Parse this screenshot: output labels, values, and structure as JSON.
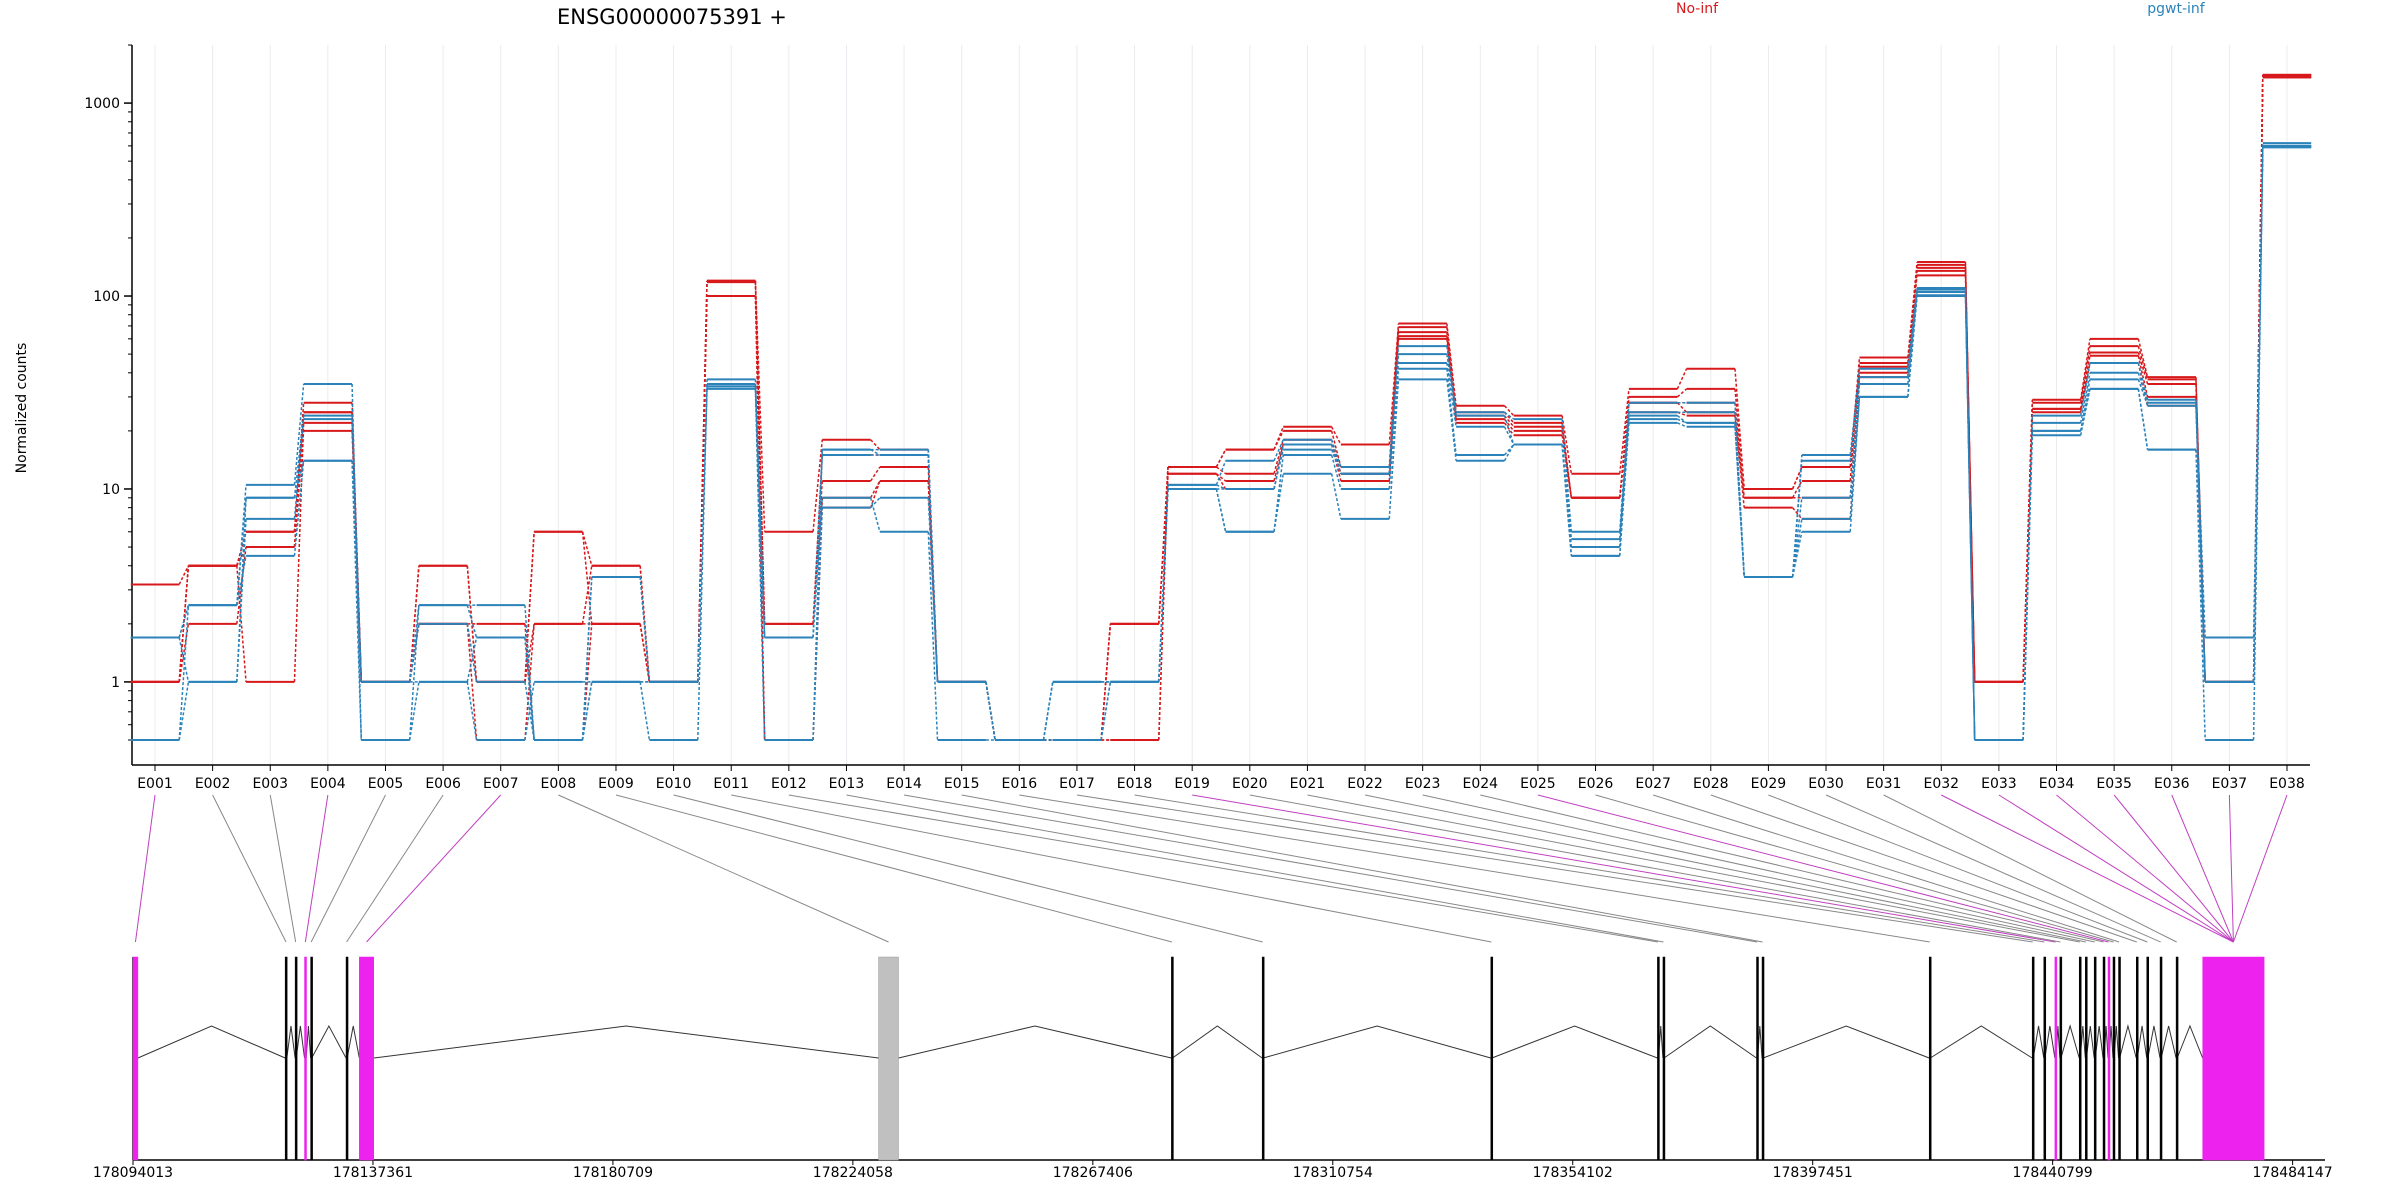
{
  "chart_data": {
    "type": "line",
    "title": "ENSG00000075391 +",
    "ylabel": "Normalized counts",
    "yscale": "log",
    "ylim": [
      0.5,
      2000
    ],
    "yticks": [
      1,
      10,
      100,
      1000
    ],
    "ytick_labels": [
      "1",
      "10",
      "100",
      "1000"
    ],
    "categories": [
      "E001",
      "E002",
      "E003",
      "E004",
      "E005",
      "E006",
      "E007",
      "E008",
      "E009",
      "E010",
      "E011",
      "E012",
      "E013",
      "E014",
      "E015",
      "E016",
      "E017",
      "E018",
      "E019",
      "E020",
      "E021",
      "E022",
      "E023",
      "E024",
      "E025",
      "E026",
      "E027",
      "E028",
      "E029",
      "E030",
      "E031",
      "E032",
      "E033",
      "E034",
      "E035",
      "E036",
      "E037",
      "E038"
    ],
    "legend": [
      {
        "label": "No-inf",
        "color": "#d7191c"
      },
      {
        "label": "pgwt-inf",
        "color": "#2b83ba"
      }
    ],
    "series": [
      {
        "group": "No-inf",
        "color": "#d7191c",
        "values": [
          3.2,
          4,
          6,
          28,
          1,
          4,
          1,
          6,
          4,
          1,
          120,
          6,
          18,
          16,
          1,
          0.5,
          0.5,
          2,
          13,
          16,
          21,
          17,
          72,
          27,
          24,
          12,
          33,
          42,
          10,
          13,
          48,
          150,
          1,
          29,
          60,
          38,
          1,
          1400
        ]
      },
      {
        "group": "No-inf",
        "color": "#d7191c",
        "values": [
          1,
          2,
          5,
          25,
          1,
          2,
          1,
          2,
          2,
          1,
          118,
          2,
          15,
          15,
          1,
          0.5,
          0.5,
          2,
          13,
          16,
          20,
          13,
          69,
          25,
          22,
          9,
          30,
          33,
          10,
          13,
          45,
          140,
          1,
          28,
          55,
          37,
          1,
          1380
        ]
      },
      {
        "group": "No-inf",
        "color": "#d7191c",
        "values": [
          1,
          4,
          1,
          22,
          1,
          2,
          0.5,
          2,
          4,
          1,
          100,
          2,
          11,
          13,
          1,
          0.5,
          0.5,
          0.5,
          13,
          12,
          18,
          12,
          65,
          24,
          21,
          9,
          28,
          28,
          9,
          11,
          43,
          128,
          1,
          26,
          51,
          35,
          1,
          1360
        ]
      },
      {
        "group": "No-inf",
        "color": "#d7191c",
        "values": [
          1,
          4,
          6,
          25,
          1,
          2,
          2,
          0.5,
          2,
          1,
          120,
          0.5,
          9,
          11,
          1,
          0.5,
          0.5,
          0.5,
          12,
          11,
          17,
          12,
          62,
          23,
          20,
          9,
          28,
          25,
          9,
          9,
          40,
          145,
          1,
          26,
          49,
          30,
          1,
          1360
        ]
      },
      {
        "group": "No-inf",
        "color": "#d7191c",
        "values": [
          1,
          4,
          5,
          20,
          1,
          4,
          1,
          6,
          2,
          1,
          100,
          0.5,
          8,
          11,
          1,
          0.5,
          0.5,
          2,
          12,
          10,
          17,
          11,
          60,
          22,
          19,
          9,
          25,
          24,
          8,
          7,
          38,
          135,
          1,
          25,
          45,
          27,
          1,
          1400
        ]
      },
      {
        "group": "pgwt-inf",
        "color": "#2b83ba",
        "values": [
          1.7,
          2.5,
          10.5,
          35,
          0.5,
          2.5,
          2.5,
          0.5,
          3.5,
          1,
          37,
          0.5,
          16,
          16,
          1,
          0.5,
          1,
          1,
          10.5,
          14,
          18,
          13,
          55,
          25,
          23,
          6,
          28,
          28,
          3.5,
          15,
          42,
          110,
          0.5,
          24,
          45,
          29,
          1.7,
          620
        ]
      },
      {
        "group": "pgwt-inf",
        "color": "#2b83ba",
        "values": [
          1.7,
          2.5,
          9,
          24,
          1,
          2.5,
          1.7,
          0.5,
          3.5,
          1,
          35,
          1.7,
          16,
          15,
          1,
          0.5,
          0.5,
          1,
          10.5,
          10,
          17,
          12,
          50,
          24,
          17,
          5.5,
          25,
          25,
          3.5,
          14,
          38,
          108,
          0.5,
          22,
          40,
          28,
          1,
          600
        ]
      },
      {
        "group": "pgwt-inf",
        "color": "#2b83ba",
        "values": [
          1.7,
          1,
          7,
          23,
          1,
          2,
          1,
          0.5,
          1,
          1,
          34,
          1.7,
          15,
          15,
          1,
          0.5,
          1,
          1,
          10,
          10,
          16,
          12,
          45,
          21,
          17,
          5,
          24,
          22,
          3.5,
          9,
          35,
          105,
          0.5,
          20,
          37,
          27,
          1,
          600
        ]
      },
      {
        "group": "pgwt-inf",
        "color": "#2b83ba",
        "values": [
          0.5,
          2.5,
          4.5,
          14,
          1,
          1,
          0.5,
          1,
          1,
          1,
          33,
          0.5,
          8,
          9,
          1,
          0.5,
          0.5,
          1,
          10,
          6,
          15,
          10,
          42,
          15,
          17,
          4.5,
          23,
          22,
          3.5,
          7,
          30,
          100,
          0.5,
          20,
          33,
          16,
          1,
          590
        ]
      },
      {
        "group": "pgwt-inf",
        "color": "#2b83ba",
        "values": [
          0.5,
          1,
          9,
          14,
          0.5,
          1,
          1.7,
          0.5,
          1,
          0.5,
          34,
          1.7,
          9,
          6,
          0.5,
          0.5,
          1,
          1,
          10,
          6,
          12,
          7,
          37,
          14,
          17,
          4.5,
          22,
          21,
          3.5,
          6,
          30,
          101,
          0.5,
          19,
          33,
          16,
          0.5,
          590
        ]
      }
    ],
    "gene_model": {
      "xlim": [
        178094013,
        178490000
      ],
      "tick_values": [
        178094013,
        178137361,
        178180709,
        178224058,
        178267406,
        178310754,
        178354102,
        178397451,
        178440799,
        178484147
      ],
      "tick_labels": [
        "178094013",
        "178137361",
        "178180709",
        "178224058",
        "178267406",
        "178310754",
        "178354102",
        "178397451",
        "178440799",
        "178484147"
      ],
      "exons": [
        {
          "id": "E001",
          "start": 178094013,
          "end": 178094900,
          "color": "#ee22ee"
        },
        {
          "id": "E002",
          "start": 178121500,
          "end": 178121800,
          "color": "#000000"
        },
        {
          "id": "E003",
          "start": 178123300,
          "end": 178123500,
          "color": "#000000"
        },
        {
          "id": "E004",
          "start": 178125000,
          "end": 178125300,
          "color": "#ee22ee"
        },
        {
          "id": "E005",
          "start": 178126100,
          "end": 178126300,
          "color": "#000000"
        },
        {
          "id": "E006",
          "start": 178132500,
          "end": 178132700,
          "color": "#000000"
        },
        {
          "id": "E007",
          "start": 178134900,
          "end": 178137500,
          "color": "#ee22ee"
        },
        {
          "id": "E008",
          "start": 178228700,
          "end": 178232300,
          "color": "#c0c0c0"
        },
        {
          "id": "E009",
          "start": 178281600,
          "end": 178281800,
          "color": "#000000"
        },
        {
          "id": "E010",
          "start": 178298000,
          "end": 178298200,
          "color": "#000000"
        },
        {
          "id": "E011",
          "start": 178339300,
          "end": 178339500,
          "color": "#000000"
        },
        {
          "id": "E012",
          "start": 178369400,
          "end": 178369600,
          "color": "#000000"
        },
        {
          "id": "E013",
          "start": 178370400,
          "end": 178370600,
          "color": "#000000"
        },
        {
          "id": "E014",
          "start": 178387300,
          "end": 178387500,
          "color": "#000000"
        },
        {
          "id": "E015",
          "start": 178388300,
          "end": 178388500,
          "color": "#000000"
        },
        {
          "id": "E016",
          "start": 178418500,
          "end": 178418700,
          "color": "#000000"
        },
        {
          "id": "E017",
          "start": 178437100,
          "end": 178437300,
          "color": "#000000"
        },
        {
          "id": "E018",
          "start": 178439200,
          "end": 178439400,
          "color": "#000000"
        },
        {
          "id": "E019",
          "start": 178441200,
          "end": 178441400,
          "color": "#ee22ee"
        },
        {
          "id": "E020",
          "start": 178442100,
          "end": 178442300,
          "color": "#000000"
        },
        {
          "id": "E021",
          "start": 178445600,
          "end": 178445800,
          "color": "#000000"
        },
        {
          "id": "E022",
          "start": 178446700,
          "end": 178446900,
          "color": "#000000"
        },
        {
          "id": "E023",
          "start": 178448300,
          "end": 178448500,
          "color": "#000000"
        },
        {
          "id": "E024",
          "start": 178449900,
          "end": 178450100,
          "color": "#000000"
        },
        {
          "id": "E025",
          "start": 178450800,
          "end": 178451000,
          "color": "#ee22ee"
        },
        {
          "id": "E026",
          "start": 178451700,
          "end": 178451900,
          "color": "#000000"
        },
        {
          "id": "E027",
          "start": 178452700,
          "end": 178452900,
          "color": "#000000"
        },
        {
          "id": "E028",
          "start": 178455900,
          "end": 178456100,
          "color": "#000000"
        },
        {
          "id": "E029",
          "start": 178457800,
          "end": 178458000,
          "color": "#000000"
        },
        {
          "id": "E030",
          "start": 178460200,
          "end": 178460400,
          "color": "#000000"
        },
        {
          "id": "E031",
          "start": 178463100,
          "end": 178463300,
          "color": "#000000"
        },
        {
          "id": "E032",
          "start": 178467900,
          "end": 178479000,
          "color": "#ee22ee"
        }
      ]
    }
  }
}
